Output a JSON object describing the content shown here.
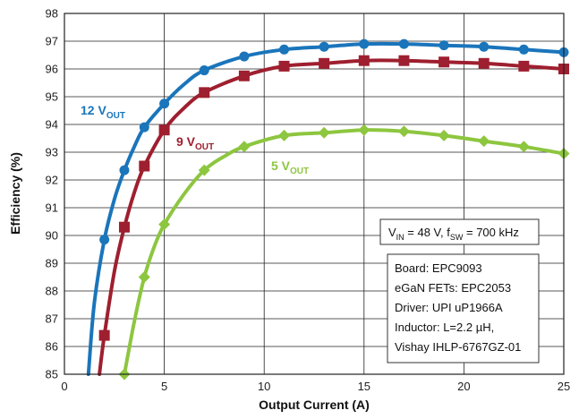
{
  "chart_data": {
    "type": "line",
    "xlabel": "Output Current (A)",
    "ylabel": "Efficiency (%)",
    "xlim": [
      0,
      25
    ],
    "ylim": [
      85,
      98
    ],
    "xticks": [
      0,
      5,
      10,
      15,
      20,
      25
    ],
    "yticks": [
      85,
      86,
      87,
      88,
      89,
      90,
      91,
      92,
      93,
      94,
      95,
      96,
      97,
      98
    ],
    "grid": true,
    "series": [
      {
        "name": "12 V",
        "name_sub": "OUT",
        "color": "#1a75bb",
        "marker": "circle",
        "curve_x": [
          1.2,
          1.5,
          2,
          2.5,
          3,
          3.5,
          4,
          5,
          6,
          7,
          9,
          11,
          13,
          15,
          17,
          19,
          21,
          23,
          25
        ],
        "curve_y": [
          85.0,
          87.6,
          89.85,
          91.3,
          92.35,
          93.2,
          93.9,
          94.75,
          95.45,
          95.95,
          96.45,
          96.7,
          96.8,
          96.9,
          96.9,
          96.85,
          96.8,
          96.7,
          96.6
        ],
        "marker_x": [
          2,
          3,
          4,
          5,
          7,
          9,
          11,
          13,
          15,
          17,
          19,
          21,
          23,
          25
        ],
        "marker_y": [
          89.85,
          92.35,
          93.9,
          94.75,
          95.95,
          96.45,
          96.7,
          96.8,
          96.9,
          96.9,
          96.85,
          96.8,
          96.7,
          96.6
        ]
      },
      {
        "name": "9 V",
        "name_sub": "OUT",
        "color": "#9e1f2f",
        "marker": "square",
        "curve_x": [
          1.75,
          2,
          2.5,
          3,
          3.5,
          4,
          5,
          6,
          7,
          9,
          11,
          13,
          15,
          17,
          19,
          21,
          23,
          25
        ],
        "curve_y": [
          85.0,
          86.4,
          88.7,
          90.3,
          91.55,
          92.5,
          93.8,
          94.6,
          95.15,
          95.75,
          96.1,
          96.2,
          96.3,
          96.3,
          96.25,
          96.2,
          96.1,
          96.0
        ],
        "marker_x": [
          2,
          3,
          4,
          5,
          7,
          9,
          11,
          13,
          15,
          17,
          19,
          21,
          23,
          25
        ],
        "marker_y": [
          86.4,
          90.3,
          92.5,
          93.8,
          95.15,
          95.75,
          96.1,
          96.2,
          96.3,
          96.3,
          96.25,
          96.2,
          96.1,
          96.0
        ]
      },
      {
        "name": "5 V",
        "name_sub": "OUT",
        "color": "#8dc63f",
        "marker": "diamond",
        "curve_x": [
          3,
          3.5,
          4,
          4.5,
          5,
          6,
          7,
          8,
          9,
          11,
          13,
          15,
          17,
          19,
          21,
          23,
          25
        ],
        "curve_y": [
          85.0,
          86.9,
          88.5,
          89.6,
          90.4,
          91.5,
          92.35,
          92.85,
          93.2,
          93.6,
          93.7,
          93.8,
          93.75,
          93.6,
          93.4,
          93.2,
          92.95
        ],
        "marker_x": [
          3,
          4,
          5,
          7,
          9,
          11,
          13,
          15,
          17,
          19,
          21,
          23,
          25
        ],
        "marker_y": [
          85.0,
          88.5,
          90.4,
          92.35,
          93.2,
          93.6,
          93.7,
          93.8,
          93.75,
          93.6,
          93.4,
          93.2,
          92.95
        ]
      }
    ],
    "condition_box": {
      "vin_main": "V",
      "vin_sub": "IN",
      "vin_value": " = 48 V, f",
      "fsw_sub": "SW",
      "fsw_value": " = 700 kHz"
    },
    "info_box_lines": [
      "Board: EPC9093",
      "eGaN FETs: EPC2053",
      "Driver: UPI uP1966A",
      "Inductor: L=2.2 µH,",
      "Vishay IHLP-6767GZ-01"
    ]
  }
}
